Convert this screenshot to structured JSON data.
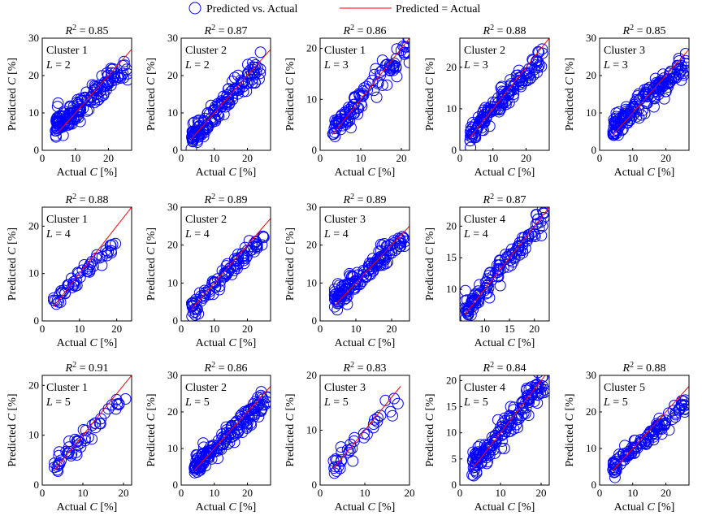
{
  "legend": {
    "scatter_label": "Predicted vs. Actual",
    "line_label": "Predicted = Actual",
    "placement": "top-center"
  },
  "colors": {
    "marker": "#0000ff",
    "line": "#ff0000",
    "axis": "#000000"
  },
  "chart_data": [
    {
      "type": "scatter",
      "r2_label": "0.85",
      "cluster_label": "Cluster 1",
      "l_label": "= 2",
      "xlabel_pre": "Actual ",
      "xlabel_var": "C",
      "xlabel_post": " [%]",
      "ylabel_pre": "Predicted ",
      "ylabel_var": "C",
      "ylabel_post": " [%]",
      "xlim": [
        0,
        27
      ],
      "ylim": [
        0,
        30
      ],
      "xticks": [
        0,
        10,
        20
      ],
      "yticks": [
        0,
        10,
        20,
        30
      ],
      "diag": [
        5,
        27
      ],
      "gen": {
        "seed": 11,
        "n": 160,
        "min": 4,
        "max": 26,
        "slope": 0.72,
        "icpt": 3.5,
        "noise": 1.6
      }
    },
    {
      "type": "scatter",
      "r2_label": "0.87",
      "cluster_label": "Cluster 2",
      "l_label": "= 2",
      "xlabel_pre": "Actual ",
      "xlabel_var": "C",
      "xlabel_post": " [%]",
      "ylabel_pre": "Predicted ",
      "ylabel_var": "C",
      "ylabel_post": " [%]",
      "xlim": [
        0,
        27
      ],
      "ylim": [
        0,
        30
      ],
      "xticks": [
        0,
        10,
        20
      ],
      "yticks": [
        0,
        10,
        20,
        30
      ],
      "diag": [
        3,
        27
      ],
      "gen": {
        "seed": 23,
        "n": 150,
        "min": 3,
        "max": 24,
        "slope": 0.92,
        "icpt": 0.8,
        "noise": 1.5
      }
    },
    {
      "type": "scatter",
      "r2_label": "0.86",
      "cluster_label": "Cluster 1",
      "l_label": "= 3",
      "xlabel_pre": "Actual ",
      "xlabel_var": "C",
      "xlabel_post": " [%]",
      "ylabel_pre": "Predicted ",
      "ylabel_var": "C",
      "ylabel_post": " [%]",
      "xlim": [
        0,
        22
      ],
      "ylim": [
        0,
        22
      ],
      "xticks": [
        0,
        10,
        20
      ],
      "yticks": [
        0,
        10,
        20
      ],
      "diag": [
        3,
        22
      ],
      "gen": {
        "seed": 37,
        "n": 110,
        "min": 3,
        "max": 22,
        "slope": 0.88,
        "icpt": 1.0,
        "noise": 1.3
      }
    },
    {
      "type": "scatter",
      "r2_label": "0.88",
      "cluster_label": "Cluster 2",
      "l_label": "= 3",
      "xlabel_pre": "Actual ",
      "xlabel_var": "C",
      "xlabel_post": " [%]",
      "ylabel_pre": "Predicted ",
      "ylabel_var": "C",
      "ylabel_post": " [%]",
      "xlim": [
        0,
        27
      ],
      "ylim": [
        0,
        27
      ],
      "xticks": [
        0,
        10,
        20
      ],
      "yticks": [
        0,
        10,
        20
      ],
      "diag": [
        3,
        27
      ],
      "gen": {
        "seed": 41,
        "n": 150,
        "min": 3,
        "max": 25,
        "slope": 0.85,
        "icpt": 1.2,
        "noise": 1.3
      }
    },
    {
      "type": "scatter",
      "r2_label": "0.85",
      "cluster_label": "Cluster 3",
      "l_label": "= 3",
      "xlabel_pre": "Actual ",
      "xlabel_var": "C",
      "xlabel_post": " [%]",
      "ylabel_pre": "Predicted ",
      "ylabel_var": "C",
      "ylabel_post": " [%]",
      "xlim": [
        0,
        27
      ],
      "ylim": [
        0,
        30
      ],
      "xticks": [
        0,
        10,
        20
      ],
      "yticks": [
        0,
        10,
        20,
        30
      ],
      "diag": [
        4,
        27
      ],
      "gen": {
        "seed": 53,
        "n": 180,
        "min": 4,
        "max": 26,
        "slope": 0.78,
        "icpt": 2.8,
        "noise": 1.5
      }
    },
    {
      "type": "scatter",
      "r2_label": "0.88",
      "cluster_label": "Cluster 1",
      "l_label": "= 4",
      "xlabel_pre": "Actual ",
      "xlabel_var": "C",
      "xlabel_post": " [%]",
      "ylabel_pre": "Predicted ",
      "ylabel_var": "C",
      "ylabel_post": " [%]",
      "xlim": [
        0,
        24
      ],
      "ylim": [
        0,
        24
      ],
      "xticks": [
        0,
        10,
        20
      ],
      "yticks": [
        0,
        10,
        20
      ],
      "diag": [
        3,
        24
      ],
      "gen": {
        "seed": 61,
        "n": 55,
        "min": 3,
        "max": 20,
        "slope": 0.75,
        "icpt": 1.8,
        "noise": 0.9
      }
    },
    {
      "type": "scatter",
      "r2_label": "0.89",
      "cluster_label": "Cluster 2",
      "l_label": "= 4",
      "xlabel_pre": "Actual ",
      "xlabel_var": "C",
      "xlabel_post": " [%]",
      "ylabel_pre": "Predicted ",
      "ylabel_var": "C",
      "ylabel_post": " [%]",
      "xlim": [
        0,
        27
      ],
      "ylim": [
        0,
        30
      ],
      "xticks": [
        0,
        10,
        20
      ],
      "yticks": [
        0,
        10,
        20,
        30
      ],
      "diag": [
        3,
        27
      ],
      "gen": {
        "seed": 73,
        "n": 100,
        "min": 3,
        "max": 25,
        "slope": 0.85,
        "icpt": 1.0,
        "noise": 1.2
      }
    },
    {
      "type": "scatter",
      "r2_label": "0.89",
      "cluster_label": "Cluster 3",
      "l_label": "= 4",
      "xlabel_pre": "Actual ",
      "xlabel_var": "C",
      "xlabel_post": " [%]",
      "ylabel_pre": "Predicted ",
      "ylabel_var": "C",
      "ylabel_post": " [%]",
      "xlim": [
        0,
        25
      ],
      "ylim": [
        0,
        30
      ],
      "xticks": [
        0,
        10,
        20
      ],
      "yticks": [
        0,
        10,
        20,
        30
      ],
      "diag": [
        4,
        25
      ],
      "gen": {
        "seed": 83,
        "n": 150,
        "min": 4,
        "max": 24,
        "slope": 0.82,
        "icpt": 2.5,
        "noise": 1.3
      }
    },
    {
      "type": "scatter",
      "r2_label": "0.87",
      "cluster_label": "Cluster 4",
      "l_label": "= 4",
      "xlabel_pre": "Actual ",
      "xlabel_var": "C",
      "xlabel_post": " [%]",
      "ylabel_pre": "Predicted ",
      "ylabel_var": "C",
      "ylabel_post": " [%]",
      "xlim": [
        5,
        23
      ],
      "ylim": [
        5,
        23
      ],
      "xticks": [
        10,
        15,
        20
      ],
      "yticks": [
        10,
        15,
        20
      ],
      "diag": [
        6,
        23
      ],
      "gen": {
        "seed": 97,
        "n": 130,
        "min": 6,
        "max": 22,
        "slope": 0.92,
        "icpt": 0.8,
        "noise": 1.1
      }
    },
    {
      "type": "scatter",
      "r2_label": "0.91",
      "cluster_label": "Cluster 1",
      "l_label": "= 5",
      "xlabel_pre": "Actual ",
      "xlabel_var": "C",
      "xlabel_post": " [%]",
      "ylabel_pre": "Predicted ",
      "ylabel_var": "C",
      "ylabel_post": " [%]",
      "xlim": [
        0,
        22
      ],
      "ylim": [
        0,
        22
      ],
      "xticks": [
        0,
        10,
        20
      ],
      "yticks": [
        0,
        10,
        20
      ],
      "diag": [
        3,
        22
      ],
      "gen": {
        "seed": 101,
        "n": 50,
        "min": 3,
        "max": 21,
        "slope": 0.8,
        "icpt": 1.2,
        "noise": 0.9
      }
    },
    {
      "type": "scatter",
      "r2_label": "0.86",
      "cluster_label": "Cluster 2",
      "l_label": "= 5",
      "xlabel_pre": "Actual ",
      "xlabel_var": "C",
      "xlabel_post": " [%]",
      "ylabel_pre": "Predicted ",
      "ylabel_var": "C",
      "ylabel_post": " [%]",
      "xlim": [
        0,
        27
      ],
      "ylim": [
        0,
        30
      ],
      "xticks": [
        0,
        10,
        20
      ],
      "yticks": [
        0,
        10,
        20,
        30
      ],
      "diag": [
        4,
        27
      ],
      "gen": {
        "seed": 113,
        "n": 170,
        "min": 4,
        "max": 26,
        "slope": 0.84,
        "icpt": 1.6,
        "noise": 1.5
      }
    },
    {
      "type": "scatter",
      "r2_label": "0.83",
      "cluster_label": "Cluster 3",
      "l_label": "= 5",
      "xlabel_pre": "Actual ",
      "xlabel_var": "C",
      "xlabel_post": " [%]",
      "ylabel_pre": "Predicted ",
      "ylabel_var": "C",
      "ylabel_post": " [%]",
      "xlim": [
        0,
        20
      ],
      "ylim": [
        0,
        20
      ],
      "xticks": [
        0,
        10,
        20
      ],
      "yticks": [
        0,
        10,
        20
      ],
      "diag": [
        3,
        18
      ],
      "gen": {
        "seed": 127,
        "n": 35,
        "min": 3,
        "max": 18,
        "slope": 0.78,
        "icpt": 1.5,
        "noise": 1.2
      }
    },
    {
      "type": "scatter",
      "r2_label": "0.84",
      "cluster_label": "Cluster 4",
      "l_label": "= 5",
      "xlabel_pre": "Actual ",
      "xlabel_var": "C",
      "xlabel_post": " [%]",
      "ylabel_pre": "Predicted ",
      "ylabel_var": "C",
      "ylabel_post": " [%]",
      "xlim": [
        0,
        22
      ],
      "ylim": [
        0,
        21
      ],
      "xticks": [
        0,
        10,
        20
      ],
      "yticks": [
        0,
        5,
        10,
        15,
        20
      ],
      "diag": [
        3,
        22
      ],
      "gen": {
        "seed": 131,
        "n": 160,
        "min": 3,
        "max": 21,
        "slope": 0.95,
        "icpt": 0.5,
        "noise": 1.3
      }
    },
    {
      "type": "scatter",
      "r2_label": "0.88",
      "cluster_label": "Cluster 5",
      "l_label": "= 5",
      "xlabel_pre": "Actual ",
      "xlabel_var": "C",
      "xlabel_post": " [%]",
      "ylabel_pre": "Predicted ",
      "ylabel_var": "C",
      "ylabel_post": " [%]",
      "xlim": [
        0,
        27
      ],
      "ylim": [
        0,
        30
      ],
      "xticks": [
        0,
        10,
        20
      ],
      "yticks": [
        0,
        10,
        20,
        30
      ],
      "diag": [
        4,
        27
      ],
      "gen": {
        "seed": 139,
        "n": 120,
        "min": 4,
        "max": 26,
        "slope": 0.78,
        "icpt": 1.8,
        "noise": 1.2
      }
    }
  ]
}
